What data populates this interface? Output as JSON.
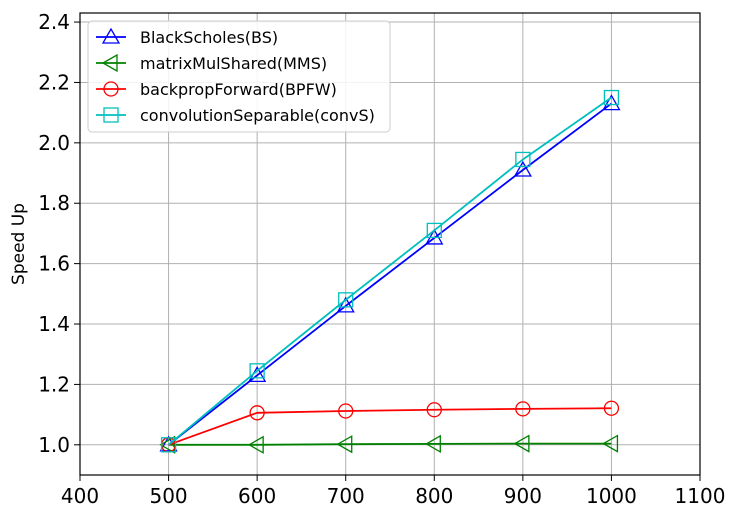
{
  "chart_data": {
    "type": "line",
    "title": "",
    "xlabel": "",
    "ylabel": "Speed Up",
    "xlim": [
      400,
      1100
    ],
    "ylim": [
      0.9,
      2.43
    ],
    "x_ticks": [
      "400",
      "500",
      "600",
      "700",
      "800",
      "900",
      "1000",
      "1100"
    ],
    "y_ticks": [
      "1.0",
      "1.2",
      "1.4",
      "1.6",
      "1.8",
      "2.0",
      "2.2",
      "2.4"
    ],
    "grid": true,
    "legend_position": "top-left",
    "x": [
      500,
      600,
      700,
      800,
      900,
      1000
    ],
    "series": [
      {
        "name": "BlackScholes(BS)",
        "color": "#0000ff",
        "marker": "triangle-up",
        "values": [
          1.0,
          1.23,
          1.46,
          1.685,
          1.91,
          2.13
        ]
      },
      {
        "name": "matrixMulShared(MMS)",
        "color": "#008000",
        "marker": "triangle-left",
        "values": [
          1.0,
          1.0,
          1.002,
          1.003,
          1.004,
          1.004
        ]
      },
      {
        "name": "backpropForward(BPFW)",
        "color": "#ff0000",
        "marker": "circle",
        "values": [
          1.0,
          1.106,
          1.112,
          1.116,
          1.119,
          1.121
        ]
      },
      {
        "name": "convolutionSeparable(convS)",
        "color": "#00bfbf",
        "marker": "square",
        "values": [
          1.0,
          1.245,
          1.48,
          1.71,
          1.945,
          2.15
        ]
      }
    ]
  }
}
